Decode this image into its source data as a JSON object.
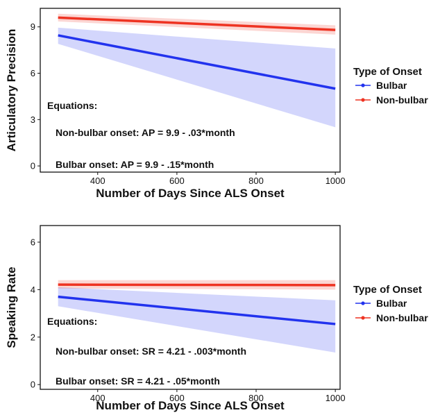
{
  "colors": {
    "bulbar": "#2233ee",
    "nonbulbar": "#ee3322"
  },
  "chart_data": [
    {
      "type": "line",
      "xlabel": "Number of Days Since ALS Onset",
      "ylabel": "Articulatory Precision",
      "xlim": [
        255,
        1012
      ],
      "ylim": [
        -0.4,
        10.2
      ],
      "xticks": [
        400,
        600,
        800,
        1000
      ],
      "yticks": [
        0,
        3,
        6,
        9
      ],
      "grid": false,
      "annotations": {
        "heading": "Equations:",
        "nonbulbar": "Non-bulbar onset: AP = 9.9 - .03*month",
        "bulbar": "Bulbar onset: AP = 9.9 - .15*month"
      },
      "series": [
        {
          "name": "Bulbar",
          "key": "bulbar",
          "fit": {
            "x": [
              300,
              1000
            ],
            "y": [
              8.45,
              5.0
            ]
          },
          "band": {
            "x": [
              300,
              1000
            ],
            "lower": [
              7.9,
              2.5
            ],
            "upper": [
              8.95,
              7.6
            ]
          }
        },
        {
          "name": "Non-bulbar",
          "key": "nonbulbar",
          "fit": {
            "x": [
              300,
              1000
            ],
            "y": [
              9.6,
              8.8
            ]
          },
          "band": {
            "x": [
              300,
              1000
            ],
            "lower": [
              9.35,
              8.5
            ],
            "upper": [
              9.85,
              9.1
            ]
          }
        }
      ],
      "legend": {
        "title": "Type of Onset",
        "entries": [
          "Bulbar",
          "Non-bulbar"
        ],
        "position": "right"
      }
    },
    {
      "type": "line",
      "xlabel": "Number of Days Since ALS Onset",
      "ylabel": "Speaking Rate",
      "xlim": [
        255,
        1012
      ],
      "ylim": [
        -0.2,
        6.7
      ],
      "xticks": [
        400,
        600,
        800,
        1000
      ],
      "yticks": [
        0,
        2,
        4,
        6
      ],
      "grid": false,
      "annotations": {
        "heading": "Equations:",
        "nonbulbar": "Non-bulbar onset: SR = 4.21 - .003*month",
        "bulbar": "Bulbar onset: SR = 4.21 - .05*month"
      },
      "series": [
        {
          "name": "Bulbar",
          "key": "bulbar",
          "fit": {
            "x": [
              300,
              1000
            ],
            "y": [
              3.7,
              2.55
            ]
          },
          "band": {
            "x": [
              300,
              1000
            ],
            "lower": [
              3.3,
              1.35
            ],
            "upper": [
              4.1,
              3.55
            ]
          }
        },
        {
          "name": "Non-bulbar",
          "key": "nonbulbar",
          "fit": {
            "x": [
              300,
              1000
            ],
            "y": [
              4.21,
              4.19
            ]
          },
          "band": {
            "x": [
              300,
              1000
            ],
            "lower": [
              4.05,
              4.0
            ],
            "upper": [
              4.4,
              4.4
            ]
          }
        }
      ],
      "legend": {
        "title": "Type of Onset",
        "entries": [
          "Bulbar",
          "Non-bulbar"
        ],
        "position": "right"
      }
    }
  ]
}
